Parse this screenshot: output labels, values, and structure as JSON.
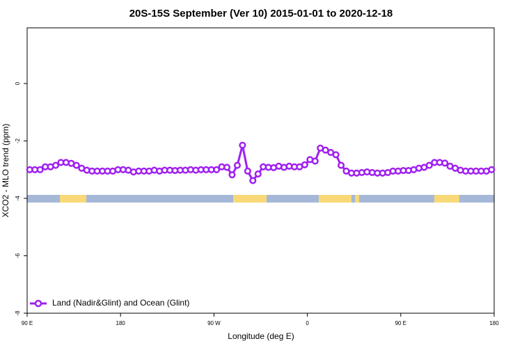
{
  "chart_data": {
    "type": "line",
    "title": "20S-15S September (Ver 10)   2015-01-01 to 2020-12-18",
    "x_label": "Longitude (deg E)",
    "y_label": "XCO2 - MLO trend (ppm)",
    "xlim": [
      90,
      540
    ],
    "xticks": [
      {
        "value": 90,
        "label": "90 E"
      },
      180,
      {
        "value": 270,
        "label": "90 W"
      },
      {
        "value": 360,
        "label": "0"
      },
      {
        "value": 450,
        "label": "90 E"
      },
      {
        "value": 540,
        "label": "180"
      }
    ],
    "ylim": [
      -8,
      1.94
    ],
    "yticks": [
      -8,
      -6,
      -4,
      -2,
      0
    ],
    "legend": "bottom-left",
    "x": [
      92.5,
      97.5,
      102.5,
      107.5,
      112.5,
      117.5,
      122.5,
      127.5,
      132.5,
      137.5,
      142.5,
      147.5,
      152.5,
      157.5,
      162.5,
      167.5,
      172.5,
      177.5,
      182.5,
      187.5,
      192.5,
      197.5,
      202.5,
      207.5,
      212.5,
      217.5,
      222.5,
      227.5,
      232.5,
      237.5,
      242.5,
      247.5,
      252.5,
      257.5,
      262.5,
      267.5,
      272.5,
      277.5,
      282.5,
      287.5,
      292.5,
      297.5,
      302.5,
      307.5,
      312.5,
      317.5,
      322.5,
      327.5,
      332.5,
      337.5,
      342.5,
      347.5,
      352.5,
      357.5,
      362.5,
      367.5,
      372.5,
      377.5,
      382.5,
      387.5,
      392.5,
      397.5,
      402.5,
      407.5,
      412.5,
      417.5,
      422.5,
      427.5,
      432.5,
      437.5,
      442.5,
      447.5,
      452.5,
      457.5,
      462.5,
      467.5,
      472.5,
      477.5,
      482.5,
      487.5,
      492.5,
      497.5,
      502.5,
      507.5,
      512.5,
      517.5,
      522.5,
      527.5,
      532.5,
      537.5
    ],
    "series": [
      {
        "name": "Land (Nadir&Glint) and Ocean (Glint)",
        "color": "#a020f0",
        "values": [
          -3.0,
          -3.0,
          -3.0,
          -2.9,
          -2.9,
          -2.85,
          -2.75,
          -2.75,
          -2.78,
          -2.85,
          -2.95,
          -3.02,
          -3.05,
          -3.05,
          -3.05,
          -3.05,
          -3.05,
          -3.0,
          -3.0,
          -3.02,
          -3.08,
          -3.05,
          -3.05,
          -3.05,
          -3.02,
          -3.05,
          -3.02,
          -3.02,
          -3.03,
          -3.02,
          -3.02,
          -3.0,
          -3.02,
          -3.0,
          -3.0,
          -3.0,
          -3.0,
          -2.9,
          -2.92,
          -3.18,
          -2.85,
          -2.15,
          -3.05,
          -3.38,
          -3.15,
          -2.9,
          -2.92,
          -2.93,
          -2.88,
          -2.92,
          -2.88,
          -2.9,
          -2.9,
          -2.83,
          -2.65,
          -2.7,
          -2.25,
          -2.32,
          -2.4,
          -2.48,
          -2.85,
          -3.05,
          -3.12,
          -3.12,
          -3.1,
          -3.08,
          -3.1,
          -3.12,
          -3.12,
          -3.1,
          -3.05,
          -3.05,
          -3.03,
          -3.03,
          -3.0,
          -2.95,
          -2.92,
          -2.85,
          -2.75,
          -2.75,
          -2.77,
          -2.88,
          -2.95,
          -3.02,
          -3.05,
          -3.05,
          -3.05,
          -3.05,
          -3.05,
          -3.0
        ]
      }
    ]
  }
}
